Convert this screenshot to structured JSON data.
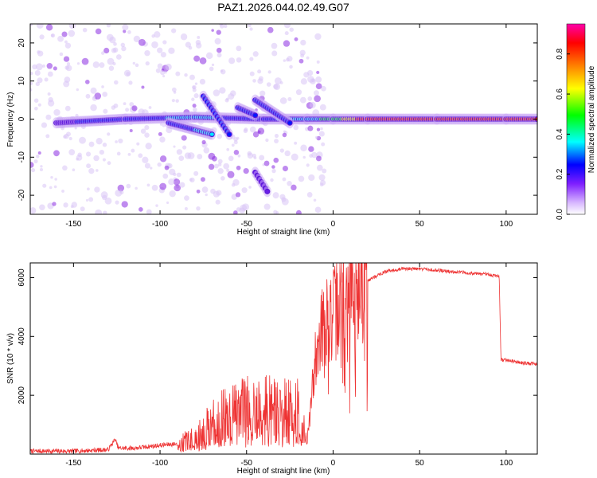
{
  "page_title": "PAZ1.2026.044.02.49.G07",
  "chart_data": [
    {
      "type": "heatmap",
      "xlabel": "Height of straight line (km)",
      "ylabel": "Frequency (Hz)",
      "xlim": [
        -175,
        118
      ],
      "ylim": [
        -25,
        25
      ],
      "x_ticks": [
        -150,
        -100,
        -50,
        0,
        50,
        100
      ],
      "y_ticks": [
        -20,
        -10,
        0,
        10,
        20
      ],
      "x_tick_labels": [
        "-150",
        "-100",
        "-50",
        "0",
        "50",
        "100"
      ],
      "y_tick_labels": [
        "-20",
        "-10",
        "0",
        "10",
        "20"
      ],
      "colorbar": {
        "label": "Normalized spectral amplitude",
        "range": [
          0,
          0.95
        ],
        "ticks": [
          0.0,
          0.2,
          0.4,
          0.6,
          0.8
        ],
        "tick_labels": [
          "0.0",
          "0.2",
          "0.4",
          "0.6",
          "0.8"
        ],
        "colors": [
          "#ffffff",
          "#8a2be2",
          "#0000ff",
          "#00ffff",
          "#00ff00",
          "#ffff00",
          "#ff8000",
          "#ff0000",
          "#ff00cc"
        ]
      },
      "ridges": [
        {
          "x": [
            -160,
            -120,
            -80,
            -40,
            -15,
            0,
            20,
            60,
            100,
            118
          ],
          "y": [
            -1,
            0,
            0.5,
            0,
            0,
            0,
            0,
            0,
            0,
            0
          ],
          "amplitude": [
            0.25,
            0.35,
            0.4,
            0.35,
            0.45,
            0.55,
            0.8,
            0.8,
            0.8,
            0.8
          ]
        },
        {
          "x": [
            -75,
            -60
          ],
          "y": [
            6,
            -4
          ],
          "amplitude": [
            0.3,
            0.35
          ]
        },
        {
          "x": [
            -95,
            -70
          ],
          "y": [
            -1,
            -4
          ],
          "amplitude": [
            0.35,
            0.4
          ]
        },
        {
          "x": [
            -55,
            -45
          ],
          "y": [
            3,
            1
          ],
          "amplitude": [
            0.3,
            0.35
          ]
        },
        {
          "x": [
            -45,
            -25
          ],
          "y": [
            5,
            -1
          ],
          "amplitude": [
            0.3,
            0.35
          ]
        },
        {
          "x": [
            -45,
            -38
          ],
          "y": [
            -14,
            -19
          ],
          "amplitude": [
            0.2,
            0.25
          ]
        }
      ]
    },
    {
      "type": "line",
      "xlabel": "Height of straight line (km)",
      "ylabel": "SNR (10 * v/v)",
      "xlim": [
        -175,
        118
      ],
      "ylim": [
        0,
        6500
      ],
      "x_ticks": [
        -150,
        -100,
        -50,
        0,
        50,
        100
      ],
      "y_ticks": [
        2000,
        4000,
        6000
      ],
      "x_tick_labels": [
        "-150",
        "-100",
        "-50",
        "0",
        "50",
        "100"
      ],
      "y_tick_labels": [
        "2000",
        "4000",
        "6000"
      ],
      "line_color": "#ee3333",
      "series": [
        {
          "x": [
            -175,
            -150,
            -130,
            -126,
            -124,
            -115,
            -100,
            -90,
            -80,
            -70,
            -60,
            -50,
            -40,
            -30,
            -20,
            -15,
            -13,
            -10,
            -8,
            -5,
            0,
            5,
            10,
            20,
            30,
            40,
            50,
            60,
            70,
            80,
            90,
            96,
            97,
            100,
            110,
            118
          ],
          "y": [
            100,
            100,
            150,
            500,
            200,
            200,
            300,
            350,
            500,
            1000,
            1300,
            1500,
            1500,
            1400,
            1400,
            400,
            1500,
            3500,
            4200,
            4400,
            4700,
            5200,
            5500,
            5900,
            6200,
            6300,
            6300,
            6250,
            6200,
            6150,
            6100,
            6050,
            3200,
            3200,
            3100,
            3050
          ]
        }
      ]
    }
  ]
}
